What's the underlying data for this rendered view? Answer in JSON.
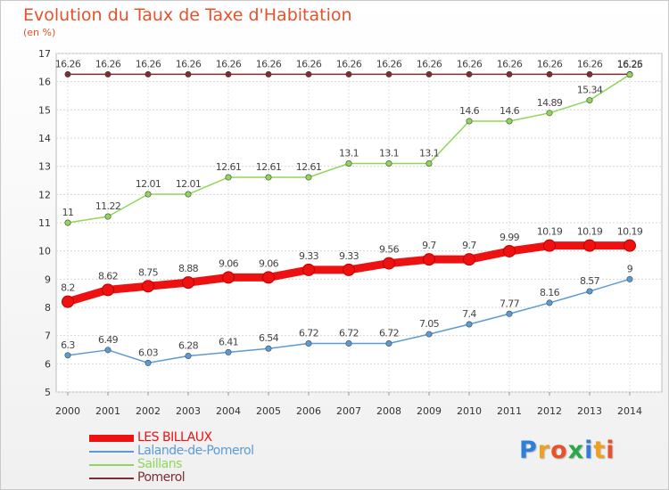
{
  "header": {
    "title": "Evolution du Taux de Taxe d'Habitation",
    "unit": "(en %)"
  },
  "logo": {
    "letters": [
      "P",
      "r",
      "o",
      "x",
      "i",
      "t",
      "i"
    ],
    "colors": [
      "#2f7fd8",
      "#f0a020",
      "#e8512a",
      "#2aa84a",
      "#2f7fd8",
      "#f0a020",
      "#e8512a"
    ]
  },
  "chart_data": {
    "type": "line",
    "title": "Evolution du Taux de Taxe d'Habitation",
    "ylabel": "(en %)",
    "xlabel": "",
    "x": [
      "2000",
      "2001",
      "2002",
      "2003",
      "2004",
      "2005",
      "2006",
      "2007",
      "2008",
      "2009",
      "2010",
      "2011",
      "2012",
      "2013",
      "2014"
    ],
    "ylim": [
      5,
      17
    ],
    "yticks": [
      5,
      6,
      7,
      8,
      9,
      10,
      11,
      12,
      13,
      14,
      15,
      16,
      17
    ],
    "grid": true,
    "legend_position": "bottom-left",
    "series": [
      {
        "name": "LES BILLAUX",
        "color": "#ee1111",
        "values": [
          8.2,
          8.62,
          8.75,
          8.88,
          9.06,
          9.06,
          9.33,
          9.33,
          9.56,
          9.7,
          9.7,
          9.99,
          10.19,
          10.19,
          10.19
        ],
        "labels": [
          "8.2",
          "8.62",
          "8.75",
          "8.88",
          "9.06",
          "9.06",
          "9.33",
          "9.33",
          "9.56",
          "9.7",
          "9.7",
          "9.99",
          "10.19",
          "10.19",
          "10.19"
        ]
      },
      {
        "name": "Lalande-de-Pomerol",
        "color": "#5b9bd5",
        "values": [
          6.3,
          6.49,
          6.03,
          6.28,
          6.41,
          6.54,
          6.72,
          6.72,
          6.72,
          7.05,
          7.4,
          7.77,
          8.16,
          8.57,
          9
        ],
        "labels": [
          "6.3",
          "6.49",
          "6.03",
          "6.28",
          "6.41",
          "6.54",
          "6.72",
          "6.72",
          "6.72",
          "7.05",
          "7.4",
          "7.77",
          "8.16",
          "8.57",
          "9"
        ]
      },
      {
        "name": "Saillans",
        "color": "#8fd65a",
        "values": [
          11,
          11.22,
          12.01,
          12.01,
          12.61,
          12.61,
          12.61,
          13.1,
          13.1,
          13.1,
          14.6,
          14.6,
          14.89,
          15.34,
          16.25
        ],
        "labels": [
          "11",
          "11.22",
          "12.01",
          "12.01",
          "12.61",
          "12.61",
          "12.61",
          "13.1",
          "13.1",
          "13.1",
          "14.6",
          "14.6",
          "14.89",
          "15.34",
          "16.25"
        ]
      },
      {
        "name": "Pomerol",
        "color": "#7a3030",
        "values": [
          16.26,
          16.26,
          16.26,
          16.26,
          16.26,
          16.26,
          16.26,
          16.26,
          16.26,
          16.26,
          16.26,
          16.26,
          16.26,
          16.26,
          16.26
        ],
        "labels": [
          "16.26",
          "16.26",
          "16.26",
          "16.26",
          "16.26",
          "16.26",
          "16.26",
          "16.26",
          "16.26",
          "16.26",
          "16.26",
          "16.26",
          "16.26",
          "16.26",
          "16.26"
        ]
      }
    ]
  }
}
